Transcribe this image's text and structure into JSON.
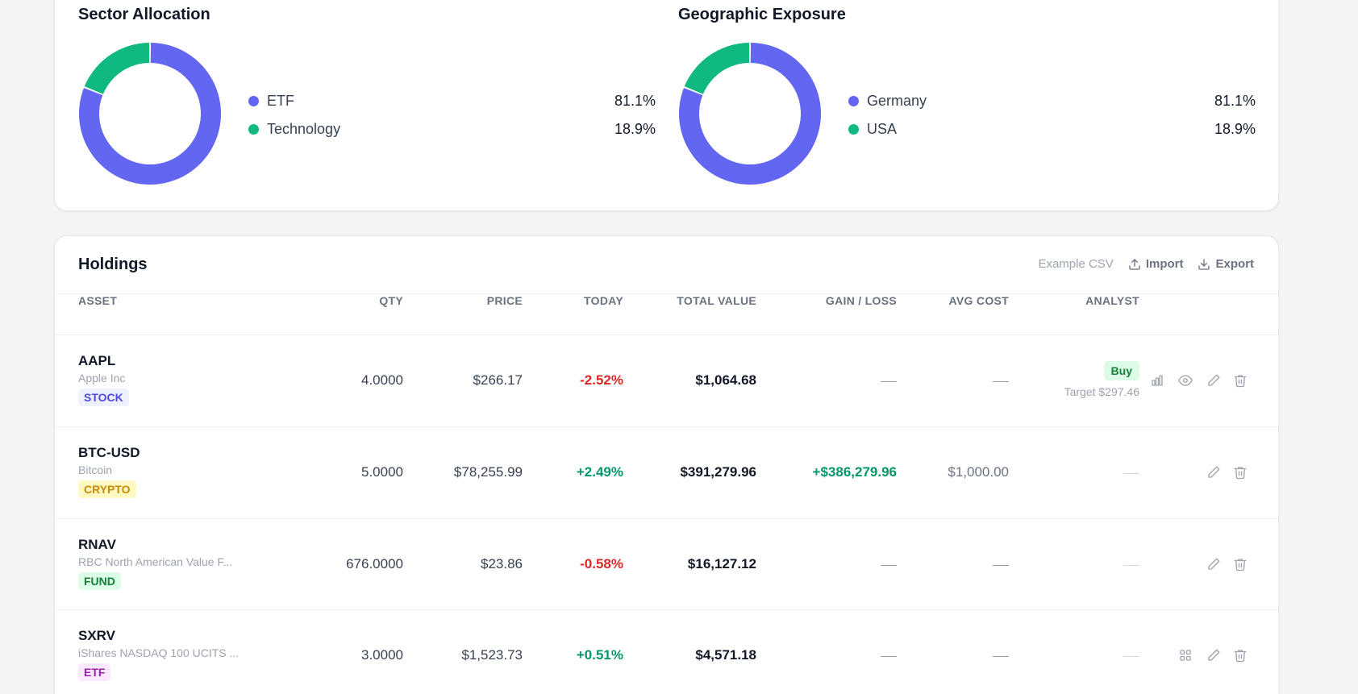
{
  "allocation": {
    "sector": {
      "title": "Sector Allocation",
      "items": [
        {
          "label": "ETF",
          "pct": "81.1%",
          "value": 81.1,
          "color": "#6366f1"
        },
        {
          "label": "Technology",
          "pct": "18.9%",
          "value": 18.9,
          "color": "#10b981"
        }
      ]
    },
    "geo": {
      "title": "Geographic Exposure",
      "items": [
        {
          "label": "Germany",
          "pct": "81.1%",
          "value": 81.1,
          "color": "#6366f1"
        },
        {
          "label": "USA",
          "pct": "18.9%",
          "value": 18.9,
          "color": "#10b981"
        }
      ]
    }
  },
  "holdings": {
    "title": "Holdings",
    "actions": {
      "example_csv": "Example CSV",
      "import": "Import",
      "export": "Export"
    },
    "columns": {
      "asset": "ASSET",
      "qty": "QTY",
      "price": "PRICE",
      "today": "TODAY",
      "total_value": "TOTAL VALUE",
      "gain_loss": "GAIN / LOSS",
      "avg_cost": "AVG COST",
      "analyst": "ANALYST"
    },
    "rows": [
      {
        "ticker": "AAPL",
        "name": "Apple Inc",
        "type": "STOCK",
        "qty": "4.0000",
        "price": "$266.17",
        "today": "-2.52%",
        "total": "$1,064.68",
        "analyst_rating": "Buy",
        "analyst_target": "Target $297.46"
      },
      {
        "ticker": "BTC-USD",
        "name": "Bitcoin",
        "type": "CRYPTO",
        "qty": "5.0000",
        "price": "$78,255.99",
        "today": "+2.49%",
        "total": "$391,279.96",
        "gain": "+$386,279.96",
        "avg_cost": "$1,000.00"
      },
      {
        "ticker": "RNAV",
        "name": "RBC North American Value F...",
        "type": "FUND",
        "qty": "676.0000",
        "price": "$23.86",
        "today": "-0.58%",
        "total": "$16,127.12"
      },
      {
        "ticker": "SXRV",
        "name": "iShares NASDAQ 100 UCITS ...",
        "type": "ETF",
        "qty": "3.0000",
        "price": "$1,523.73",
        "today": "+0.51%",
        "total": "$4,571.18"
      }
    ]
  },
  "colors": {
    "accent": "#6366f1",
    "secondary": "#10b981",
    "negative": "#dc2626",
    "positive": "#059669"
  }
}
